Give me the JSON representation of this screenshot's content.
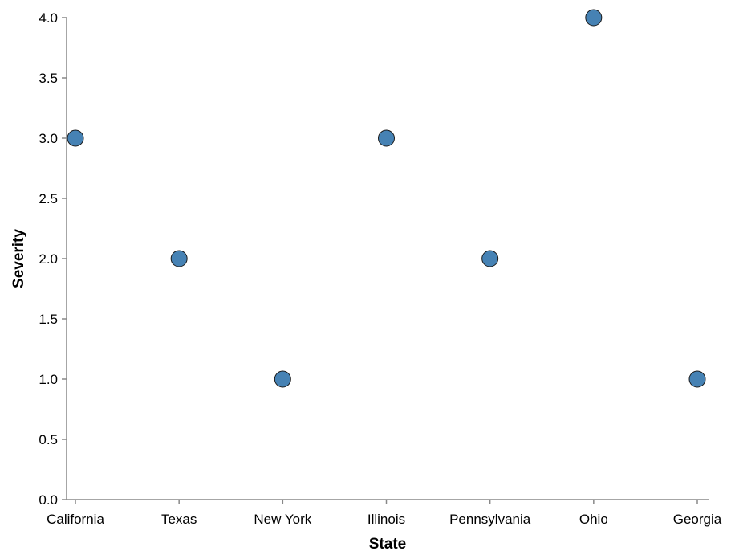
{
  "chart_data": {
    "type": "scatter",
    "x_type": "categorical",
    "categories": [
      "California",
      "Texas",
      "New York",
      "Illinois",
      "Pennsylvania",
      "Ohio",
      "Georgia"
    ],
    "values": [
      3,
      2,
      1,
      3,
      2,
      4,
      1
    ],
    "xlabel": "State",
    "ylabel": "Severity",
    "ylim": [
      0,
      4
    ],
    "y_ticks": [
      "0.0",
      "0.5",
      "1.0",
      "1.5",
      "2.0",
      "2.5",
      "3.0",
      "3.5",
      "4.0"
    ],
    "grid": false,
    "point_color": "#4682b4"
  }
}
